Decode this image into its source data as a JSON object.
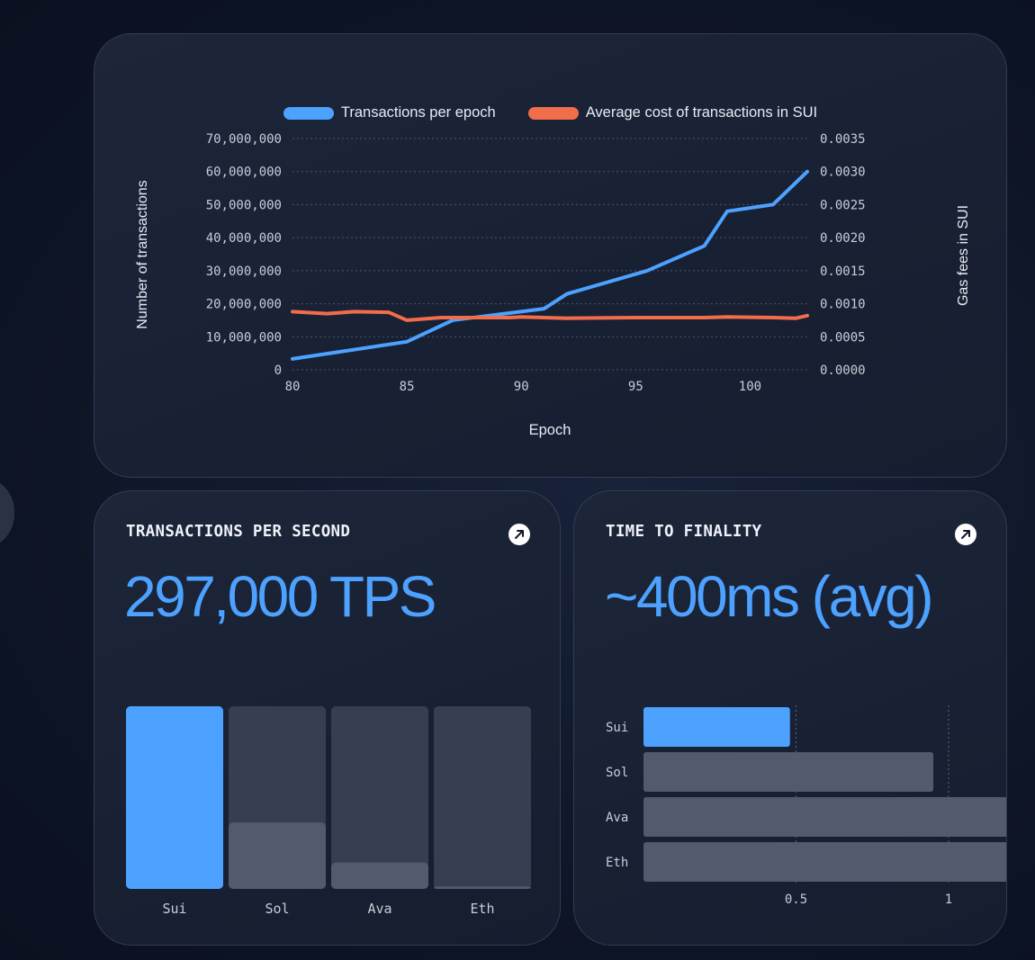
{
  "colors": {
    "accent_blue": "#4da2ff",
    "accent_orange": "#f26d4a",
    "bar_bg": "#363f51",
    "bar_fill": "#515b6d"
  },
  "icons": [
    "arrow-up-right-icon"
  ],
  "chart_data": [
    {
      "type": "line",
      "legend": [
        "Transactions per epoch",
        "Average cost of transactions in SUI"
      ],
      "xlabel": "Epoch",
      "ylabel": "Number of transactions",
      "y2label": "Gas fees in SUI",
      "xlim": [
        80,
        102.5
      ],
      "ylim": [
        0,
        70000000
      ],
      "y2lim": [
        0,
        0.0035
      ],
      "x_ticks": [
        "80",
        "85",
        "90",
        "95",
        "100"
      ],
      "y_ticks": [
        "0",
        "10,000,000",
        "20,000,000",
        "30,000,000",
        "40,000,000",
        "50,000,000",
        "60,000,000",
        "70,000,000"
      ],
      "y2_ticks": [
        "0.0000",
        "0.0005",
        "0.0010",
        "0.0015",
        "0.0020",
        "0.0025",
        "0.0030",
        "0.0035"
      ],
      "grid": true,
      "series": [
        {
          "name": "Transactions per epoch",
          "axis": "left",
          "color": "#4da2ff",
          "x": [
            80,
            85,
            87,
            91,
            92,
            95.5,
            98,
            99,
            101,
            102.5
          ],
          "y": [
            3300000,
            8500000,
            15000000,
            18500000,
            23000000,
            30000000,
            37500000,
            48000000,
            50000000,
            60000000
          ]
        },
        {
          "name": "Average cost of transactions in SUI",
          "axis": "right",
          "color": "#f26d4a",
          "x": [
            80,
            81.5,
            82.7,
            84.2,
            85,
            86.5,
            88,
            89.5,
            90,
            92,
            95,
            98,
            99,
            101,
            102,
            102.5
          ],
          "y": [
            0.00088,
            0.00085,
            0.00088,
            0.00087,
            0.00075,
            0.00079,
            0.00079,
            0.00079,
            0.0008,
            0.00078,
            0.00079,
            0.00079,
            0.0008,
            0.00079,
            0.00078,
            0.00082
          ]
        }
      ]
    },
    {
      "type": "bar",
      "title": "TRANSACTIONS PER SECOND",
      "headline": "297,000 TPS",
      "categories": [
        "Sui",
        "Sol",
        "Ava",
        "Eth"
      ],
      "values": [
        297000,
        108000,
        43000,
        4000
      ],
      "ylim": [
        0,
        297000
      ]
    },
    {
      "type": "bar",
      "orientation": "horizontal",
      "title": "TIME TO FINALITY",
      "headline": "~400ms (avg)",
      "categories": [
        "Sui",
        "Sol",
        "Ava",
        "Eth"
      ],
      "values": [
        0.48,
        0.95,
        1.2,
        1.2
      ],
      "x_ticks": [
        "0.5",
        "1"
      ],
      "x_tick_values": [
        0.5,
        1
      ],
      "xlim": [
        0,
        1.2
      ]
    }
  ]
}
